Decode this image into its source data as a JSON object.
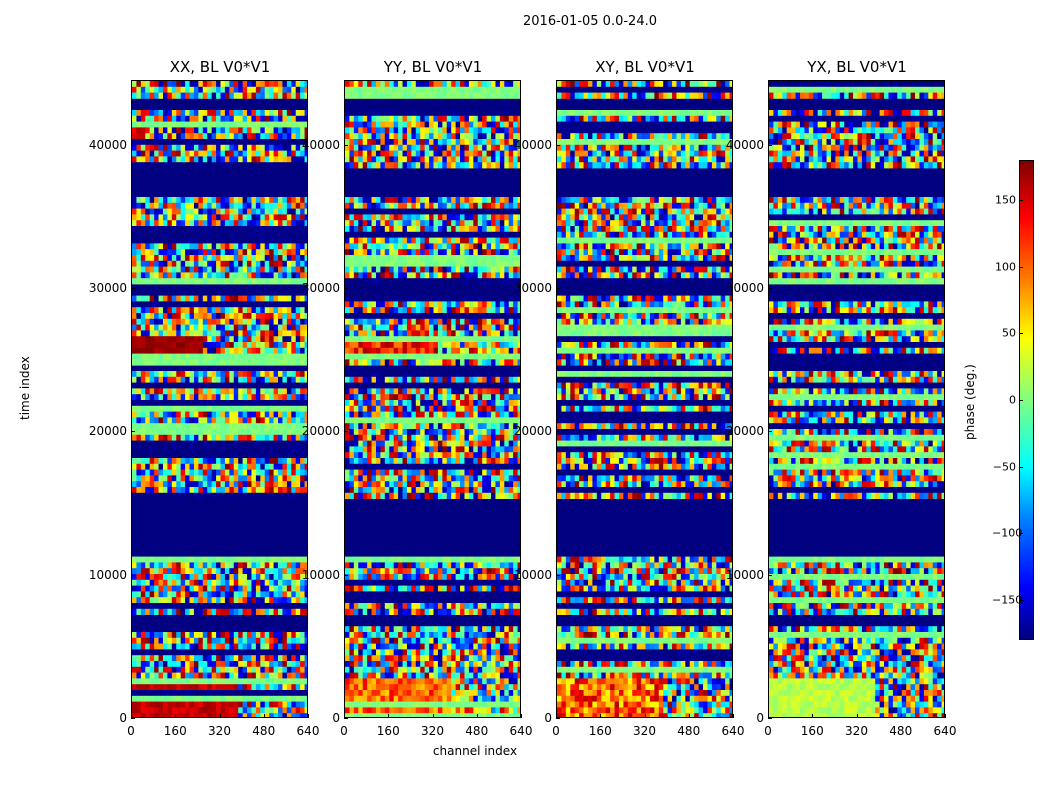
{
  "suptitle": "2016-01-05 0.0-24.0",
  "chart_data": {
    "type": "heatmap",
    "title": "2016-01-05 0.0-24.0",
    "xlabel": "channel index",
    "ylabel": "time index",
    "colorbar_label": "phase (deg.)",
    "colormap": "jet",
    "color_range": [
      -180,
      180
    ],
    "x_range": [
      0,
      640
    ],
    "y_range": [
      0,
      44500
    ],
    "panels": [
      {
        "title": "XX, BL V0*V1",
        "style": "xx"
      },
      {
        "title": "YY, BL V0*V1",
        "style": "yy"
      },
      {
        "title": "XY, BL V0*V1",
        "style": "xy"
      },
      {
        "title": "YX, BL V0*V1",
        "style": "yx"
      }
    ],
    "x_ticks": [
      "0",
      "160",
      "320",
      "480",
      "640"
    ],
    "x_tick_values": [
      0,
      160,
      320,
      480,
      640
    ],
    "y_ticks": [
      "0",
      "10000",
      "20000",
      "30000",
      "40000"
    ],
    "y_tick_values": [
      0,
      10000,
      20000,
      30000,
      40000
    ],
    "colorbar_ticks": [
      "150",
      "100",
      "50",
      "0",
      "−50",
      "−100",
      "−150"
    ],
    "colorbar_tick_values": [
      150,
      100,
      50,
      0,
      -50,
      -100,
      -150
    ],
    "flagged_bands": [
      {
        "from": 11200,
        "to": 15200,
        "value": -180
      },
      {
        "from": 36500,
        "to": 38600,
        "value": -180
      },
      {
        "from": 6500,
        "to": 7300,
        "value": -180
      },
      {
        "from": 24200,
        "to": 24600,
        "value": -180
      },
      {
        "from": 29700,
        "to": 30300,
        "value": -180
      },
      {
        "from": 42600,
        "to": 43200,
        "value": -180
      }
    ]
  }
}
